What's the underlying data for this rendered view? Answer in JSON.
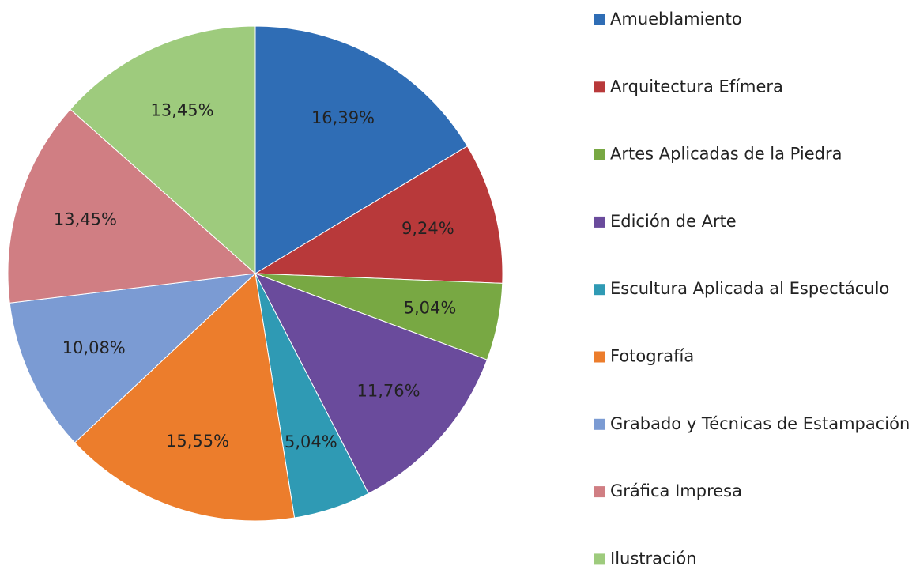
{
  "chart_data": {
    "type": "pie",
    "categories": [
      "Amueblamiento",
      "Arquitectura Efímera",
      "Artes Aplicadas de la Piedra",
      "Edición de Arte",
      "Escultura Aplicada al Espectáculo",
      "Fotografía",
      "Grabado y Técnicas de Estampación",
      "Gráfica Impresa",
      "Ilustración"
    ],
    "values": [
      16.39,
      9.24,
      5.04,
      11.76,
      5.04,
      15.55,
      10.08,
      13.45,
      13.45
    ],
    "value_labels": [
      "16,39%",
      "9,24%",
      "5,04%",
      "11,76%",
      "5,04%",
      "15,55%",
      "10,08%",
      "13,45%",
      "13,45%"
    ],
    "colors": [
      "#2f6db5",
      "#b8393a",
      "#78a843",
      "#6a4b9c",
      "#2f9ab4",
      "#ec7d2c",
      "#7b9bd3",
      "#d07e83",
      "#9ecb7d"
    ],
    "legend": "right"
  }
}
